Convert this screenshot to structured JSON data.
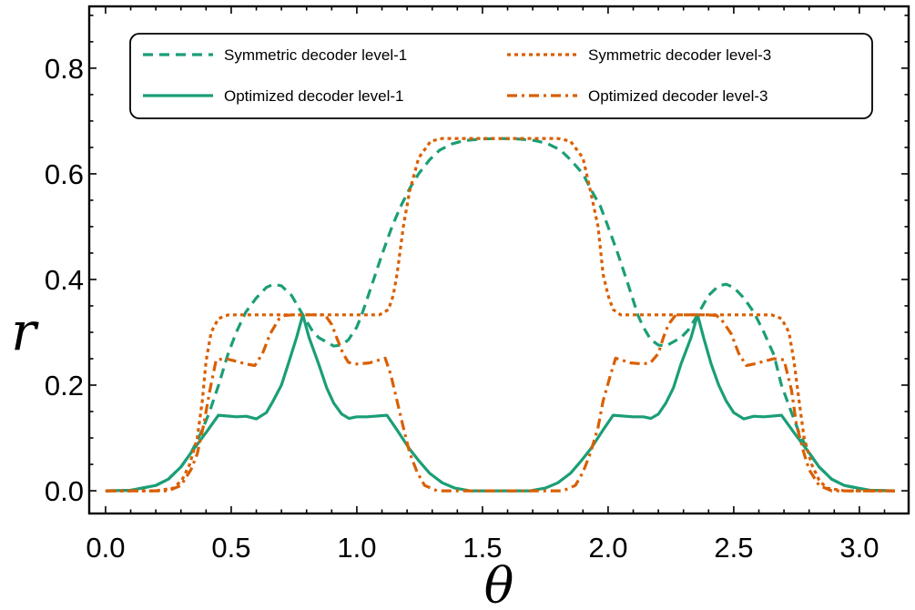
{
  "chart_data": {
    "type": "line",
    "title": "",
    "xlabel": "θ",
    "ylabel": "r",
    "xlim": [
      -0.065,
      3.196
    ],
    "ylim": [
      -0.043,
      0.917
    ],
    "xticks": [
      "0.0",
      "0.5",
      "1.0",
      "1.5",
      "2.0",
      "2.5",
      "3.0"
    ],
    "yticks": [
      "0.0",
      "0.2",
      "0.4",
      "0.6",
      "0.8"
    ],
    "grid": false,
    "legend_position": "top",
    "series": [
      {
        "name": "Symmetric decoder level-1",
        "color": "#1b9e77",
        "style": "dashed",
        "points": [
          [
            0,
            0
          ],
          [
            0.1,
            0.001
          ],
          [
            0.2,
            0.01
          ],
          [
            0.25,
            0.022
          ],
          [
            0.3,
            0.045
          ],
          [
            0.34,
            0.072
          ],
          [
            0.38,
            0.11
          ],
          [
            0.413,
            0.148
          ],
          [
            0.45,
            0.2
          ],
          [
            0.486,
            0.257
          ],
          [
            0.52,
            0.3
          ],
          [
            0.558,
            0.338
          ],
          [
            0.6,
            0.365
          ],
          [
            0.64,
            0.385
          ],
          [
            0.667,
            0.391
          ],
          [
            0.7,
            0.388
          ],
          [
            0.74,
            0.37
          ],
          [
            0.785,
            0.333
          ],
          [
            0.82,
            0.305
          ],
          [
            0.848,
            0.29
          ],
          [
            0.908,
            0.274
          ],
          [
            0.94,
            0.276
          ],
          [
            0.967,
            0.286
          ],
          [
            1.0,
            0.31
          ],
          [
            1.018,
            0.331
          ],
          [
            1.06,
            0.39
          ],
          [
            1.1,
            0.447
          ],
          [
            1.14,
            0.5
          ],
          [
            1.174,
            0.538
          ],
          [
            1.21,
            0.572
          ],
          [
            1.246,
            0.6
          ],
          [
            1.29,
            0.627
          ],
          [
            1.33,
            0.645
          ],
          [
            1.38,
            0.657
          ],
          [
            1.428,
            0.663
          ],
          [
            1.5,
            0.666
          ],
          [
            1.5708,
            0.667
          ],
          [
            1.64,
            0.666
          ],
          [
            1.71,
            0.663
          ],
          [
            1.76,
            0.657
          ],
          [
            1.81,
            0.645
          ],
          [
            1.85,
            0.627
          ],
          [
            1.9,
            0.6
          ],
          [
            1.93,
            0.572
          ],
          [
            1.97,
            0.538
          ],
          [
            2.0,
            0.5
          ],
          [
            2.04,
            0.447
          ],
          [
            2.08,
            0.39
          ],
          [
            2.12,
            0.331
          ],
          [
            2.14,
            0.31
          ],
          [
            2.17,
            0.286
          ],
          [
            2.2,
            0.276
          ],
          [
            2.23,
            0.274
          ],
          [
            2.29,
            0.29
          ],
          [
            2.32,
            0.305
          ],
          [
            2.356,
            0.333
          ],
          [
            2.4,
            0.37
          ],
          [
            2.44,
            0.388
          ],
          [
            2.47,
            0.391
          ],
          [
            2.5,
            0.385
          ],
          [
            2.54,
            0.365
          ],
          [
            2.58,
            0.338
          ],
          [
            2.62,
            0.3
          ],
          [
            2.66,
            0.257
          ],
          [
            2.69,
            0.2
          ],
          [
            2.73,
            0.148
          ],
          [
            2.76,
            0.11
          ],
          [
            2.8,
            0.072
          ],
          [
            2.84,
            0.045
          ],
          [
            2.89,
            0.022
          ],
          [
            2.94,
            0.01
          ],
          [
            3.04,
            0.001
          ],
          [
            3.1416,
            0
          ]
        ]
      },
      {
        "name": "Optimized decoder level-1",
        "color": "#1b9e77",
        "style": "solid",
        "points": [
          [
            0,
            0
          ],
          [
            0.1,
            0.001
          ],
          [
            0.2,
            0.01
          ],
          [
            0.25,
            0.022
          ],
          [
            0.3,
            0.045
          ],
          [
            0.34,
            0.072
          ],
          [
            0.4,
            0.11
          ],
          [
            0.449,
            0.143
          ],
          [
            0.52,
            0.14
          ],
          [
            0.56,
            0.141
          ],
          [
            0.6,
            0.136
          ],
          [
            0.64,
            0.148
          ],
          [
            0.667,
            0.17
          ],
          [
            0.7,
            0.2
          ],
          [
            0.727,
            0.24
          ],
          [
            0.76,
            0.29
          ],
          [
            0.785,
            0.333
          ],
          [
            0.81,
            0.29
          ],
          [
            0.848,
            0.24
          ],
          [
            0.88,
            0.195
          ],
          [
            0.908,
            0.166
          ],
          [
            0.94,
            0.145
          ],
          [
            0.969,
            0.137
          ],
          [
            1.0,
            0.14
          ],
          [
            1.04,
            0.14
          ],
          [
            1.12,
            0.143
          ],
          [
            1.16,
            0.115
          ],
          [
            1.21,
            0.079
          ],
          [
            1.25,
            0.055
          ],
          [
            1.29,
            0.033
          ],
          [
            1.34,
            0.015
          ],
          [
            1.39,
            0.005
          ],
          [
            1.45,
            0
          ],
          [
            1.5708,
            0
          ],
          [
            1.69,
            0
          ],
          [
            1.75,
            0.005
          ],
          [
            1.8,
            0.015
          ],
          [
            1.85,
            0.033
          ],
          [
            1.89,
            0.055
          ],
          [
            1.93,
            0.079
          ],
          [
            1.98,
            0.115
          ],
          [
            2.02,
            0.143
          ],
          [
            2.1,
            0.14
          ],
          [
            2.14,
            0.14
          ],
          [
            2.17,
            0.137
          ],
          [
            2.2,
            0.145
          ],
          [
            2.23,
            0.166
          ],
          [
            2.26,
            0.195
          ],
          [
            2.29,
            0.24
          ],
          [
            2.33,
            0.29
          ],
          [
            2.356,
            0.333
          ],
          [
            2.38,
            0.29
          ],
          [
            2.41,
            0.24
          ],
          [
            2.44,
            0.2
          ],
          [
            2.47,
            0.17
          ],
          [
            2.5,
            0.148
          ],
          [
            2.54,
            0.136
          ],
          [
            2.58,
            0.141
          ],
          [
            2.62,
            0.14
          ],
          [
            2.69,
            0.143
          ],
          [
            2.74,
            0.11
          ],
          [
            2.8,
            0.072
          ],
          [
            2.84,
            0.045
          ],
          [
            2.89,
            0.022
          ],
          [
            2.94,
            0.01
          ],
          [
            3.04,
            0.001
          ],
          [
            3.1416,
            0
          ]
        ]
      },
      {
        "name": "Symmetric decoder level-3",
        "color": "#d95f02",
        "style": "dotted",
        "points": [
          [
            0,
            0
          ],
          [
            0.2,
            0
          ],
          [
            0.27,
            0.005
          ],
          [
            0.304,
            0.02
          ],
          [
            0.335,
            0.05
          ],
          [
            0.365,
            0.1
          ],
          [
            0.385,
            0.17
          ],
          [
            0.4,
            0.245
          ],
          [
            0.42,
            0.3
          ],
          [
            0.449,
            0.326
          ],
          [
            0.49,
            0.333
          ],
          [
            1.09,
            0.333
          ],
          [
            1.126,
            0.343
          ],
          [
            1.145,
            0.37
          ],
          [
            1.16,
            0.41
          ],
          [
            1.185,
            0.5
          ],
          [
            1.21,
            0.567
          ],
          [
            1.246,
            0.63
          ],
          [
            1.294,
            0.662
          ],
          [
            1.34,
            0.667
          ],
          [
            1.5708,
            0.667
          ],
          [
            1.8,
            0.667
          ],
          [
            1.85,
            0.662
          ],
          [
            1.9,
            0.63
          ],
          [
            1.93,
            0.567
          ],
          [
            1.96,
            0.5
          ],
          [
            1.98,
            0.41
          ],
          [
            2.0,
            0.37
          ],
          [
            2.02,
            0.343
          ],
          [
            2.05,
            0.333
          ],
          [
            2.65,
            0.333
          ],
          [
            2.69,
            0.326
          ],
          [
            2.72,
            0.3
          ],
          [
            2.74,
            0.245
          ],
          [
            2.76,
            0.17
          ],
          [
            2.78,
            0.1
          ],
          [
            2.81,
            0.05
          ],
          [
            2.84,
            0.02
          ],
          [
            2.87,
            0.005
          ],
          [
            2.94,
            0
          ],
          [
            3.1416,
            0
          ]
        ]
      },
      {
        "name": "Optimized decoder level-3",
        "color": "#d95f02",
        "style": "dashdot",
        "points": [
          [
            0,
            0
          ],
          [
            0.25,
            0
          ],
          [
            0.3,
            0.01
          ],
          [
            0.34,
            0.04
          ],
          [
            0.365,
            0.07
          ],
          [
            0.39,
            0.124
          ],
          [
            0.415,
            0.19
          ],
          [
            0.44,
            0.248
          ],
          [
            0.48,
            0.25
          ],
          [
            0.52,
            0.245
          ],
          [
            0.56,
            0.24
          ],
          [
            0.594,
            0.237
          ],
          [
            0.625,
            0.26
          ],
          [
            0.655,
            0.297
          ],
          [
            0.69,
            0.325
          ],
          [
            0.714,
            0.332
          ],
          [
            0.75,
            0.333
          ],
          [
            0.873,
            0.333
          ],
          [
            0.9,
            0.315
          ],
          [
            0.92,
            0.29
          ],
          [
            0.945,
            0.26
          ],
          [
            0.967,
            0.243
          ],
          [
            1.0,
            0.24
          ],
          [
            1.05,
            0.242
          ],
          [
            1.113,
            0.251
          ],
          [
            1.135,
            0.22
          ],
          [
            1.16,
            0.17
          ],
          [
            1.185,
            0.12
          ],
          [
            1.21,
            0.072
          ],
          [
            1.24,
            0.035
          ],
          [
            1.27,
            0.01
          ],
          [
            1.32,
            0
          ],
          [
            1.5708,
            0
          ],
          [
            1.82,
            0
          ],
          [
            1.87,
            0.01
          ],
          [
            1.9,
            0.035
          ],
          [
            1.93,
            0.072
          ],
          [
            1.96,
            0.12
          ],
          [
            1.98,
            0.17
          ],
          [
            2.01,
            0.22
          ],
          [
            2.03,
            0.251
          ],
          [
            2.09,
            0.242
          ],
          [
            2.14,
            0.24
          ],
          [
            2.17,
            0.243
          ],
          [
            2.2,
            0.26
          ],
          [
            2.22,
            0.29
          ],
          [
            2.24,
            0.315
          ],
          [
            2.27,
            0.333
          ],
          [
            2.39,
            0.333
          ],
          [
            2.43,
            0.332
          ],
          [
            2.45,
            0.325
          ],
          [
            2.49,
            0.297
          ],
          [
            2.52,
            0.26
          ],
          [
            2.55,
            0.237
          ],
          [
            2.58,
            0.24
          ],
          [
            2.62,
            0.245
          ],
          [
            2.66,
            0.25
          ],
          [
            2.7,
            0.248
          ],
          [
            2.73,
            0.19
          ],
          [
            2.75,
            0.124
          ],
          [
            2.78,
            0.07
          ],
          [
            2.8,
            0.04
          ],
          [
            2.84,
            0.01
          ],
          [
            2.89,
            0
          ],
          [
            3.1416,
            0
          ]
        ]
      }
    ]
  }
}
